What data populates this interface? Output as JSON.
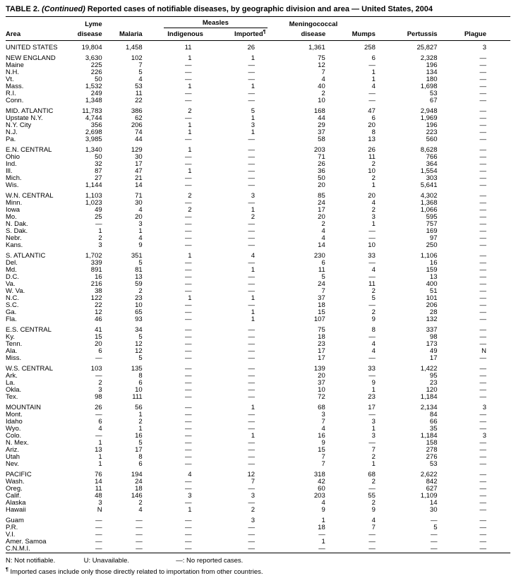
{
  "table": {
    "title": {
      "label": "TABLE 2.",
      "continued": "(Continued)",
      "rest": "Reported cases of notifiable diseases, by geographic division and area — United States, 2004"
    },
    "header": {
      "area": "Area",
      "lyme_line1": "Lyme",
      "lyme_line2": "disease",
      "malaria": "Malaria",
      "measles": "Measles",
      "indigenous": "Indigenous",
      "imported": "Imported",
      "imported_mark": "¶",
      "mening_line1": "Meningococcal",
      "mening_line2": "disease",
      "mumps": "Mumps",
      "pertussis": "Pertussis",
      "plague": "Plague"
    },
    "groups": [
      {
        "rows": [
          [
            "UNITED STATES",
            "19,804",
            "1,458",
            "11",
            "26",
            "1,361",
            "258",
            "25,827",
            "3"
          ]
        ]
      },
      {
        "rows": [
          [
            "NEW ENGLAND",
            "3,630",
            "102",
            "1",
            "1",
            "75",
            "6",
            "2,328",
            "—"
          ],
          [
            "Maine",
            "225",
            "7",
            "—",
            "—",
            "12",
            "—",
            "196",
            "—"
          ],
          [
            "N.H.",
            "226",
            "5",
            "—",
            "—",
            "7",
            "1",
            "134",
            "—"
          ],
          [
            "Vt.",
            "50",
            "4",
            "—",
            "—",
            "4",
            "1",
            "180",
            "—"
          ],
          [
            "Mass.",
            "1,532",
            "53",
            "1",
            "1",
            "40",
            "4",
            "1,698",
            "—"
          ],
          [
            "R.I.",
            "249",
            "11",
            "—",
            "—",
            "2",
            "—",
            "53",
            "—"
          ],
          [
            "Conn.",
            "1,348",
            "22",
            "—",
            "—",
            "10",
            "—",
            "67",
            "—"
          ]
        ]
      },
      {
        "rows": [
          [
            "MID. ATLANTIC",
            "11,783",
            "386",
            "2",
            "5",
            "168",
            "47",
            "2,948",
            "—"
          ],
          [
            "Upstate N.Y.",
            "4,744",
            "62",
            "—",
            "1",
            "44",
            "6",
            "1,969",
            "—"
          ],
          [
            "N.Y. City",
            "356",
            "206",
            "1",
            "3",
            "29",
            "20",
            "196",
            "—"
          ],
          [
            "N.J.",
            "2,698",
            "74",
            "1",
            "1",
            "37",
            "8",
            "223",
            "—"
          ],
          [
            "Pa.",
            "3,985",
            "44",
            "—",
            "—",
            "58",
            "13",
            "560",
            "—"
          ]
        ]
      },
      {
        "rows": [
          [
            "E.N. CENTRAL",
            "1,340",
            "129",
            "1",
            "—",
            "203",
            "26",
            "8,628",
            "—"
          ],
          [
            "Ohio",
            "50",
            "30",
            "—",
            "—",
            "71",
            "11",
            "766",
            "—"
          ],
          [
            "Ind.",
            "32",
            "17",
            "—",
            "—",
            "26",
            "2",
            "364",
            "—"
          ],
          [
            "Ill.",
            "87",
            "47",
            "1",
            "—",
            "36",
            "10",
            "1,554",
            "—"
          ],
          [
            "Mich.",
            "27",
            "21",
            "—",
            "—",
            "50",
            "2",
            "303",
            "—"
          ],
          [
            "Wis.",
            "1,144",
            "14",
            "—",
            "—",
            "20",
            "1",
            "5,641",
            "—"
          ]
        ]
      },
      {
        "rows": [
          [
            "W.N. CENTRAL",
            "1,103",
            "71",
            "2",
            "3",
            "85",
            "20",
            "4,302",
            "—"
          ],
          [
            "Minn.",
            "1,023",
            "30",
            "—",
            "—",
            "24",
            "4",
            "1,368",
            "—"
          ],
          [
            "Iowa",
            "49",
            "4",
            "2",
            "1",
            "17",
            "2",
            "1,066",
            "—"
          ],
          [
            "Mo.",
            "25",
            "20",
            "—",
            "2",
            "20",
            "3",
            "595",
            "—"
          ],
          [
            "N. Dak.",
            "—",
            "3",
            "—",
            "—",
            "2",
            "1",
            "757",
            "—"
          ],
          [
            "S. Dak.",
            "1",
            "1",
            "—",
            "—",
            "4",
            "—",
            "169",
            "—"
          ],
          [
            "Nebr.",
            "2",
            "4",
            "—",
            "—",
            "4",
            "—",
            "97",
            "—"
          ],
          [
            "Kans.",
            "3",
            "9",
            "—",
            "—",
            "14",
            "10",
            "250",
            "—"
          ]
        ]
      },
      {
        "rows": [
          [
            "S. ATLANTIC",
            "1,702",
            "351",
            "1",
            "4",
            "230",
            "33",
            "1,106",
            "—"
          ],
          [
            "Del.",
            "339",
            "5",
            "—",
            "—",
            "6",
            "—",
            "16",
            "—"
          ],
          [
            "Md.",
            "891",
            "81",
            "—",
            "1",
            "11",
            "4",
            "159",
            "—"
          ],
          [
            "D.C.",
            "16",
            "13",
            "—",
            "—",
            "5",
            "—",
            "13",
            "—"
          ],
          [
            "Va.",
            "216",
            "59",
            "—",
            "—",
            "24",
            "11",
            "400",
            "—"
          ],
          [
            "W. Va.",
            "38",
            "2",
            "—",
            "—",
            "7",
            "2",
            "51",
            "—"
          ],
          [
            "N.C.",
            "122",
            "23",
            "1",
            "1",
            "37",
            "5",
            "101",
            "—"
          ],
          [
            "S.C.",
            "22",
            "10",
            "—",
            "—",
            "18",
            "—",
            "206",
            "—"
          ],
          [
            "Ga.",
            "12",
            "65",
            "—",
            "1",
            "15",
            "2",
            "28",
            "—"
          ],
          [
            "Fla.",
            "46",
            "93",
            "—",
            "1",
            "107",
            "9",
            "132",
            "—"
          ]
        ]
      },
      {
        "rows": [
          [
            "E.S. CENTRAL",
            "41",
            "34",
            "—",
            "—",
            "75",
            "8",
            "337",
            "—"
          ],
          [
            "Ky.",
            "15",
            "5",
            "—",
            "—",
            "18",
            "—",
            "98",
            "—"
          ],
          [
            "Tenn.",
            "20",
            "12",
            "—",
            "—",
            "23",
            "4",
            "173",
            "—"
          ],
          [
            "Ala.",
            "6",
            "12",
            "—",
            "—",
            "17",
            "4",
            "49",
            "N"
          ],
          [
            "Miss.",
            "—",
            "5",
            "—",
            "—",
            "17",
            "—",
            "17",
            "—"
          ]
        ]
      },
      {
        "rows": [
          [
            "W.S. CENTRAL",
            "103",
            "135",
            "—",
            "—",
            "139",
            "33",
            "1,422",
            "—"
          ],
          [
            "Ark.",
            "—",
            "8",
            "—",
            "—",
            "20",
            "—",
            "95",
            "—"
          ],
          [
            "La.",
            "2",
            "6",
            "—",
            "—",
            "37",
            "9",
            "23",
            "—"
          ],
          [
            "Okla.",
            "3",
            "10",
            "—",
            "—",
            "10",
            "1",
            "120",
            "—"
          ],
          [
            "Tex.",
            "98",
            "111",
            "—",
            "—",
            "72",
            "23",
            "1,184",
            "—"
          ]
        ]
      },
      {
        "rows": [
          [
            "MOUNTAIN",
            "26",
            "56",
            "—",
            "1",
            "68",
            "17",
            "2,134",
            "3"
          ],
          [
            "Mont.",
            "—",
            "1",
            "—",
            "—",
            "3",
            "—",
            "84",
            "—"
          ],
          [
            "Idaho",
            "6",
            "2",
            "—",
            "—",
            "7",
            "3",
            "66",
            "—"
          ],
          [
            "Wyo.",
            "4",
            "1",
            "—",
            "—",
            "4",
            "1",
            "35",
            "—"
          ],
          [
            "Colo.",
            "—",
            "16",
            "—",
            "1",
            "16",
            "3",
            "1,184",
            "3"
          ],
          [
            "N. Mex.",
            "1",
            "5",
            "—",
            "—",
            "9",
            "—",
            "158",
            "—"
          ],
          [
            "Ariz.",
            "13",
            "17",
            "—",
            "—",
            "15",
            "7",
            "278",
            "—"
          ],
          [
            "Utah",
            "1",
            "8",
            "—",
            "—",
            "7",
            "2",
            "276",
            "—"
          ],
          [
            "Nev.",
            "1",
            "6",
            "—",
            "—",
            "7",
            "1",
            "53",
            "—"
          ]
        ]
      },
      {
        "rows": [
          [
            "PACIFIC",
            "76",
            "194",
            "4",
            "12",
            "318",
            "68",
            "2,622",
            "—"
          ],
          [
            "Wash.",
            "14",
            "24",
            "—",
            "7",
            "42",
            "2",
            "842",
            "—"
          ],
          [
            "Oreg.",
            "11",
            "18",
            "—",
            "—",
            "60",
            "—",
            "627",
            "—"
          ],
          [
            "Calif.",
            "48",
            "146",
            "3",
            "3",
            "203",
            "55",
            "1,109",
            "—"
          ],
          [
            "Alaska",
            "3",
            "2",
            "—",
            "—",
            "4",
            "2",
            "14",
            "—"
          ],
          [
            "Hawaii",
            "N",
            "4",
            "1",
            "2",
            "9",
            "9",
            "30",
            "—"
          ]
        ]
      },
      {
        "rows": [
          [
            "Guam",
            "—",
            "—",
            "—",
            "3",
            "1",
            "4",
            "—",
            "—"
          ],
          [
            "P.R.",
            "—",
            "—",
            "—",
            "—",
            "18",
            "7",
            "5",
            "—"
          ],
          [
            "V.I.",
            "—",
            "—",
            "—",
            "—",
            "—",
            "—",
            "—",
            "—"
          ],
          [
            "Amer. Samoa",
            "—",
            "—",
            "—",
            "—",
            "1",
            "—",
            "—",
            "—"
          ],
          [
            "C.N.M.I.",
            "—",
            "—",
            "—",
            "—",
            "—",
            "—",
            "—",
            "—"
          ]
        ]
      }
    ],
    "footnotes": {
      "n": "N: Not notifiable.",
      "u": "U: Unavailable.",
      "dash": "—: No reported cases.",
      "imported_mark": "¶",
      "imported_note": "Imported cases include only those directly related to importation from other countries."
    }
  }
}
